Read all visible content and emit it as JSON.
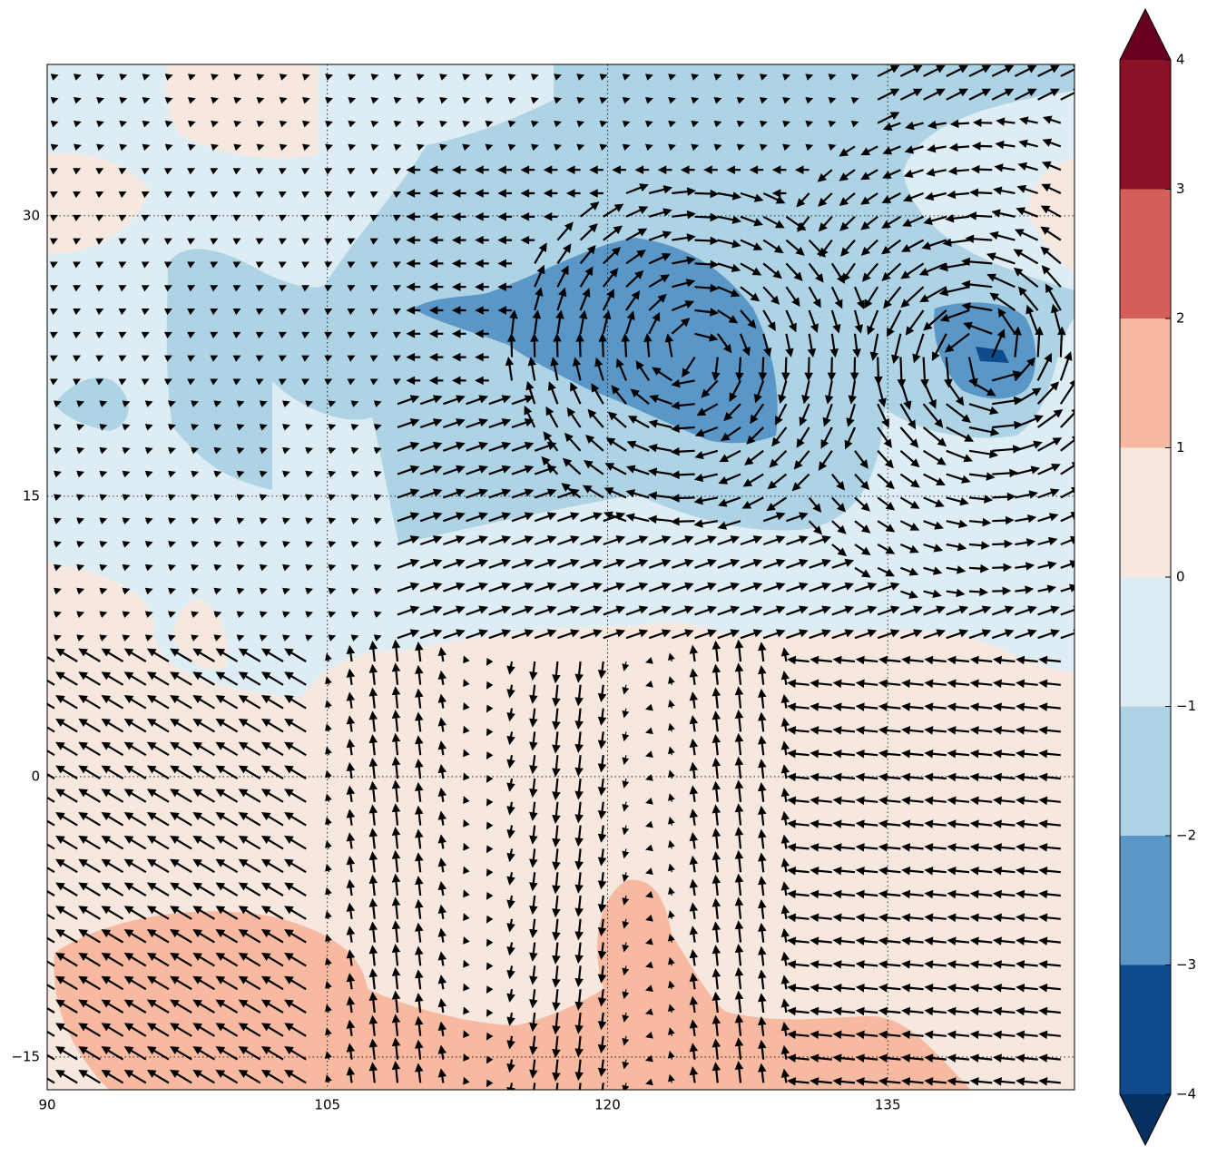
{
  "chart_data": {
    "type": "map",
    "xlim": [
      90,
      145
    ],
    "ylim": [
      -16.75,
      38.1
    ],
    "xticks": [
      90,
      105,
      120,
      135
    ],
    "yticks": [
      {
        "value": -15,
        "label": "−15"
      },
      0,
      15,
      30
    ],
    "grid": true,
    "colorbar": {
      "levels": [
        {
          "value": -4,
          "label": "−4"
        },
        {
          "value": -3,
          "label": "−3"
        },
        {
          "value": -2,
          "label": "−2"
        },
        {
          "value": -1,
          "label": "−1"
        },
        0,
        1,
        2,
        3,
        4
      ],
      "colors": [
        "#0f4a8a",
        "#5b97c6",
        "#aed3e5",
        "#deedf3",
        "#f7e8df",
        "#f7b9a0",
        "#d35f58",
        "#8b1126"
      ],
      "extend_colors": [
        "#053061",
        "#67001f"
      ]
    }
  }
}
